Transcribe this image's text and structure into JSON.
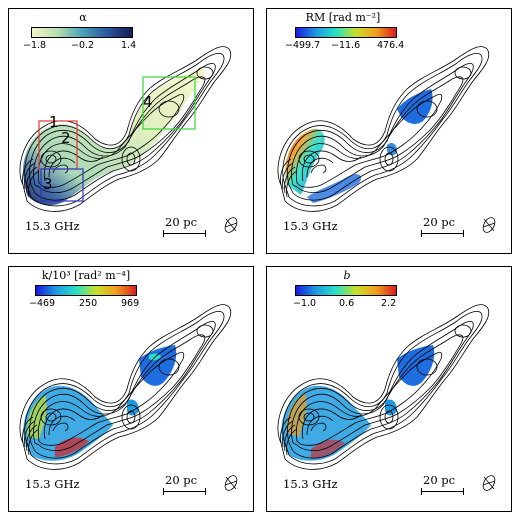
{
  "panels": [
    {
      "id": "alpha",
      "colorbar_title": "α",
      "colorbar_ticks": [
        "−1.8",
        "−0.2",
        "1.4"
      ],
      "colorbar_colors": [
        "#f6f4c8",
        "#b9dfae",
        "#4aa2b9",
        "#2b58a0",
        "#141e55"
      ],
      "frequency": "15.3 GHz",
      "scale_label": "20 pc",
      "regions": [
        "1",
        "2",
        "3",
        "4"
      ],
      "region_colors": {
        "red": "#e23838",
        "blue": "#2d36c4",
        "green": "#3ad63a"
      }
    },
    {
      "id": "rm",
      "colorbar_title": "RM [rad m⁻²]",
      "colorbar_ticks": [
        "−499.7",
        "−11.6",
        "476.4"
      ],
      "colorbar_colors": [
        "#1a1ae0",
        "#1e9be0",
        "#28e0c8",
        "#c8e02a",
        "#f0a020",
        "#d81e1e"
      ],
      "frequency": "15.3 GHz",
      "scale_label": "20 pc"
    },
    {
      "id": "k",
      "colorbar_title": "k/10³ [rad² m⁻⁴]",
      "colorbar_ticks": [
        "−469",
        "250",
        "969"
      ],
      "colorbar_colors": [
        "#1a1ae0",
        "#1e9be0",
        "#28e0c8",
        "#c8e02a",
        "#f0a020",
        "#d81e1e"
      ],
      "frequency": "15.3 GHz",
      "scale_label": "20 pc"
    },
    {
      "id": "b",
      "colorbar_title": "b",
      "colorbar_ticks": [
        "−1.0",
        "0.6",
        "2.2"
      ],
      "colorbar_colors": [
        "#1a1ae0",
        "#1e9be0",
        "#28e0c8",
        "#c8e02a",
        "#f0a020",
        "#d81e1e"
      ],
      "frequency": "15.3 GHz",
      "scale_label": "20 pc"
    }
  ]
}
